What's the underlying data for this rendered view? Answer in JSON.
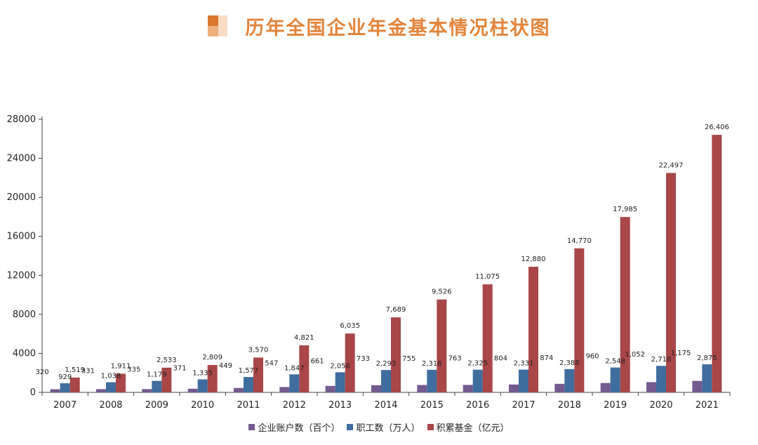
{
  "title": "历年全国企业年金基本情况柱状图",
  "colors": {
    "title": "#e3843a",
    "logo_dark": "#d9772f",
    "logo_mid": "#eeb07e",
    "logo_light": "#f8dcc3"
  },
  "chart_data": {
    "type": "bar",
    "title": "历年全国企业年金基本情况柱状图",
    "categories": [
      "2007",
      "2008",
      "2009",
      "2010",
      "2011",
      "2012",
      "2013",
      "2014",
      "2015",
      "2016",
      "2017",
      "2018",
      "2019",
      "2020",
      "2021"
    ],
    "series": [
      {
        "name": "企业账户数（百个）",
        "color": "#735a8f",
        "values": [
          320,
          331,
          335,
          371,
          449,
          547,
          661,
          733,
          755,
          763,
          804,
          874,
          960,
          1052,
          1175
        ],
        "labels": [
          "320",
          "331",
          "335",
          "371",
          "449",
          "547",
          "661",
          "733",
          "755",
          "763",
          "804",
          "874",
          "960",
          "1,052",
          "1,175"
        ]
      },
      {
        "name": "职工数（万人）",
        "color": "#3f6d9e",
        "values": [
          929,
          1038,
          1179,
          1335,
          1577,
          1847,
          2056,
          2293,
          2316,
          2325,
          2331,
          2388,
          2548,
          2718,
          2875
        ],
        "labels": [
          "929",
          "1,038",
          "1,179",
          "1,335",
          "1,577",
          "1,847",
          "2,056",
          "2,293",
          "2,316",
          "2,325",
          "2,331",
          "2,388",
          "2,548",
          "2,718",
          "2,875"
        ]
      },
      {
        "name": "积累基金（亿元）",
        "color": "#a84648",
        "values": [
          1519,
          1911,
          2533,
          2809,
          3570,
          4821,
          6035,
          7689,
          9526,
          11075,
          12880,
          14770,
          17985,
          22497,
          26406
        ],
        "labels": [
          "1,519",
          "1,911",
          "2,533",
          "2,809",
          "3,570",
          "4,821",
          "6,035",
          "7,689",
          "9,526",
          "11,075",
          "12,880",
          "14,770",
          "17,985",
          "22,497",
          "26,406"
        ]
      }
    ],
    "yticks": [
      "0",
      "4000",
      "8000",
      "12000",
      "16000",
      "20000",
      "24000",
      "28000"
    ],
    "ylim": [
      0,
      28000
    ],
    "grid": false,
    "legend": "bottom-center"
  }
}
